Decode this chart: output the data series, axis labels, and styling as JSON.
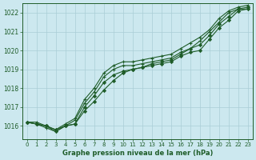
{
  "title": "Graphe pression niveau de la mer (hPa)",
  "background_color": "#cce8ef",
  "grid_color": "#aacdd6",
  "line_color": "#1e5c28",
  "xlim": [
    -0.5,
    23.5
  ],
  "ylim": [
    1015.3,
    1022.5
  ],
  "yticks": [
    1016,
    1017,
    1018,
    1019,
    1020,
    1021,
    1022
  ],
  "xticks": [
    0,
    1,
    2,
    3,
    4,
    5,
    6,
    7,
    8,
    9,
    10,
    11,
    12,
    13,
    14,
    15,
    16,
    17,
    18,
    19,
    20,
    21,
    22,
    23
  ],
  "series": [
    {
      "x": [
        0,
        1,
        2,
        3,
        4,
        5,
        6,
        7,
        8,
        9,
        10,
        11,
        12,
        13,
        14,
        15,
        16,
        17,
        18,
        19,
        20,
        21,
        22,
        23
      ],
      "y": [
        1016.2,
        1016.1,
        1016.0,
        1015.7,
        1016.0,
        1016.1,
        1017.0,
        1017.6,
        1018.3,
        1018.7,
        1018.9,
        1019.0,
        1019.1,
        1019.2,
        1019.3,
        1019.4,
        1019.7,
        1019.9,
        1020.0,
        1020.6,
        1021.2,
        1021.6,
        1022.1,
        1022.2
      ],
      "marker": "D"
    },
    {
      "x": [
        0,
        1,
        2,
        3,
        4,
        5,
        6,
        7,
        8,
        9,
        10,
        11,
        12,
        13,
        14,
        15,
        16,
        17,
        18,
        19,
        20,
        21,
        22,
        23
      ],
      "y": [
        1016.2,
        1016.1,
        1016.0,
        1015.8,
        1016.0,
        1016.1,
        1016.8,
        1017.3,
        1017.9,
        1018.4,
        1018.8,
        1019.0,
        1019.1,
        1019.3,
        1019.4,
        1019.5,
        1019.8,
        1020.1,
        1020.3,
        1020.8,
        1021.4,
        1021.8,
        1022.2,
        1022.3
      ],
      "marker": "D"
    },
    {
      "x": [
        0,
        1,
        2,
        3,
        4,
        5,
        6,
        7,
        8,
        9,
        10,
        11,
        12,
        13,
        14,
        15,
        16,
        17,
        18,
        19,
        20,
        21,
        22,
        23
      ],
      "y": [
        1016.2,
        1016.1,
        1015.9,
        1015.7,
        1016.0,
        1016.3,
        1017.2,
        1017.8,
        1018.6,
        1019.0,
        1019.2,
        1019.2,
        1019.3,
        1019.4,
        1019.5,
        1019.6,
        1019.9,
        1020.1,
        1020.5,
        1021.0,
        1021.5,
        1022.0,
        1022.2,
        1022.2
      ],
      "marker": "+"
    },
    {
      "x": [
        0,
        1,
        2,
        3,
        4,
        5,
        6,
        7,
        8,
        9,
        10,
        11,
        12,
        13,
        14,
        15,
        16,
        17,
        18,
        19,
        20,
        21,
        22,
        23
      ],
      "y": [
        1016.2,
        1016.2,
        1016.0,
        1015.8,
        1016.1,
        1016.4,
        1017.4,
        1018.0,
        1018.8,
        1019.2,
        1019.4,
        1019.4,
        1019.5,
        1019.6,
        1019.7,
        1019.8,
        1020.1,
        1020.4,
        1020.7,
        1021.1,
        1021.7,
        1022.1,
        1022.3,
        1022.4
      ],
      "marker": "+"
    }
  ]
}
